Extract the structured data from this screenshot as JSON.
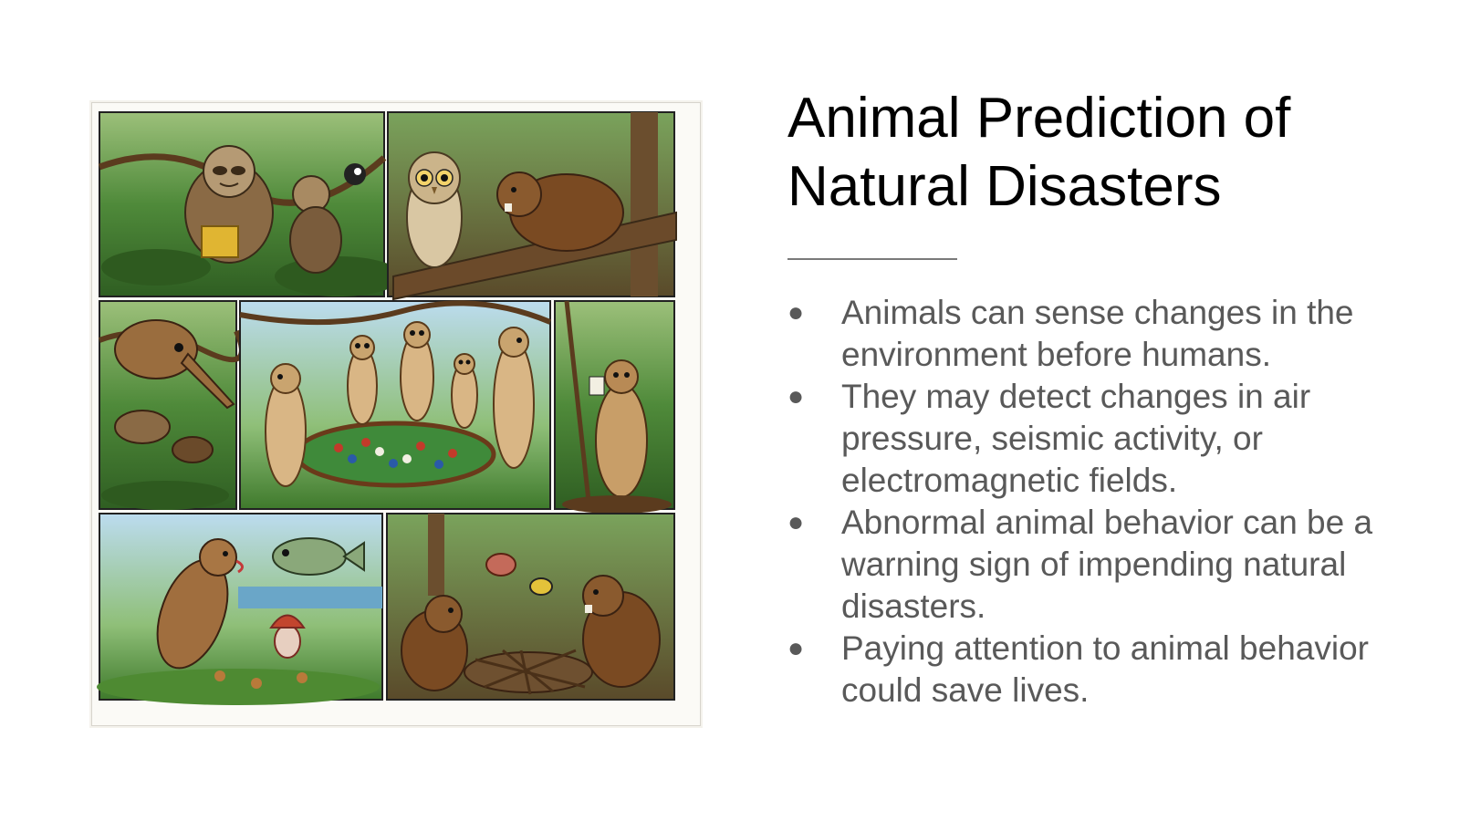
{
  "slide": {
    "title_lines": [
      "Animal Prediction of",
      "Natural Disasters"
    ],
    "bullets": [
      "Animals can sense changes in the environment before humans.",
      "They may detect changes in air pressure, seismic activity, or electromagnetic fields.",
      "Abnormal animal behavior can be a warning sign of impending natural disasters.",
      "Paying attention to animal behavior could save lives."
    ],
    "bullet_glyph": "●",
    "colors": {
      "title": "#000000",
      "body": "#595959",
      "divider": "#7a7a7a",
      "background": "#ffffff"
    }
  },
  "illustration": {
    "kind": "comic-grid",
    "panels": [
      {
        "icon": "sloth-icon"
      },
      {
        "icon": "owl-icon"
      },
      {
        "icon": "anteater-icon"
      },
      {
        "icon": "meerkats-icon"
      },
      {
        "icon": "meerkat-icon"
      },
      {
        "icon": "rodent-fish-icon"
      },
      {
        "icon": "beavers-icon"
      }
    ]
  }
}
